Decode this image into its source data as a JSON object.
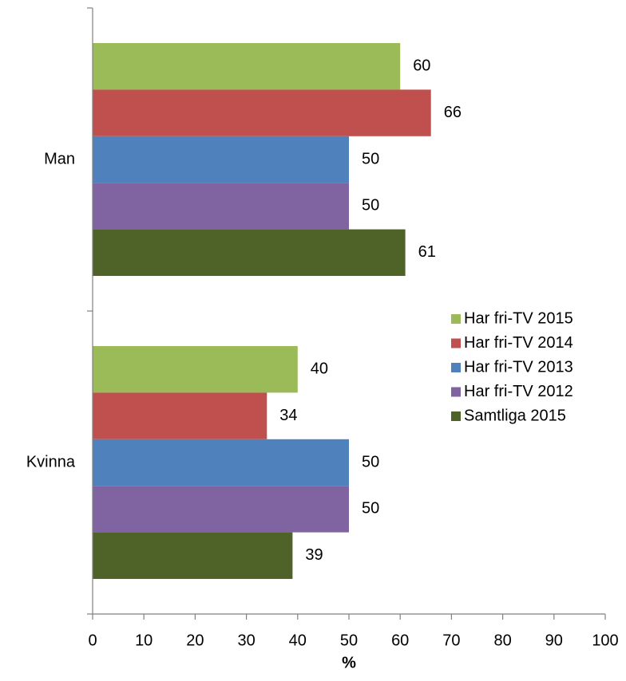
{
  "chart_data": {
    "type": "bar",
    "orientation": "horizontal",
    "categories": [
      "Man",
      "Kvinna"
    ],
    "series": [
      {
        "name": "Har fri-TV 2015",
        "color": "#9bbb59",
        "values": [
          60,
          40
        ]
      },
      {
        "name": "Har fri-TV 2014",
        "color": "#c0504d",
        "values": [
          66,
          34
        ]
      },
      {
        "name": "Har fri-TV 2013",
        "color": "#4f81bd",
        "values": [
          50,
          50
        ]
      },
      {
        "name": "Har fri-TV 2012",
        "color": "#8064a2",
        "values": [
          50,
          50
        ]
      },
      {
        "name": "Samtliga 2015",
        "color": "#4f6228",
        "values": [
          61,
          39
        ]
      }
    ],
    "x_label": "%",
    "xlim": [
      0,
      100
    ],
    "xticks": [
      0,
      10,
      20,
      30,
      40,
      50,
      60,
      70,
      80,
      90,
      100
    ],
    "legend": "right"
  }
}
